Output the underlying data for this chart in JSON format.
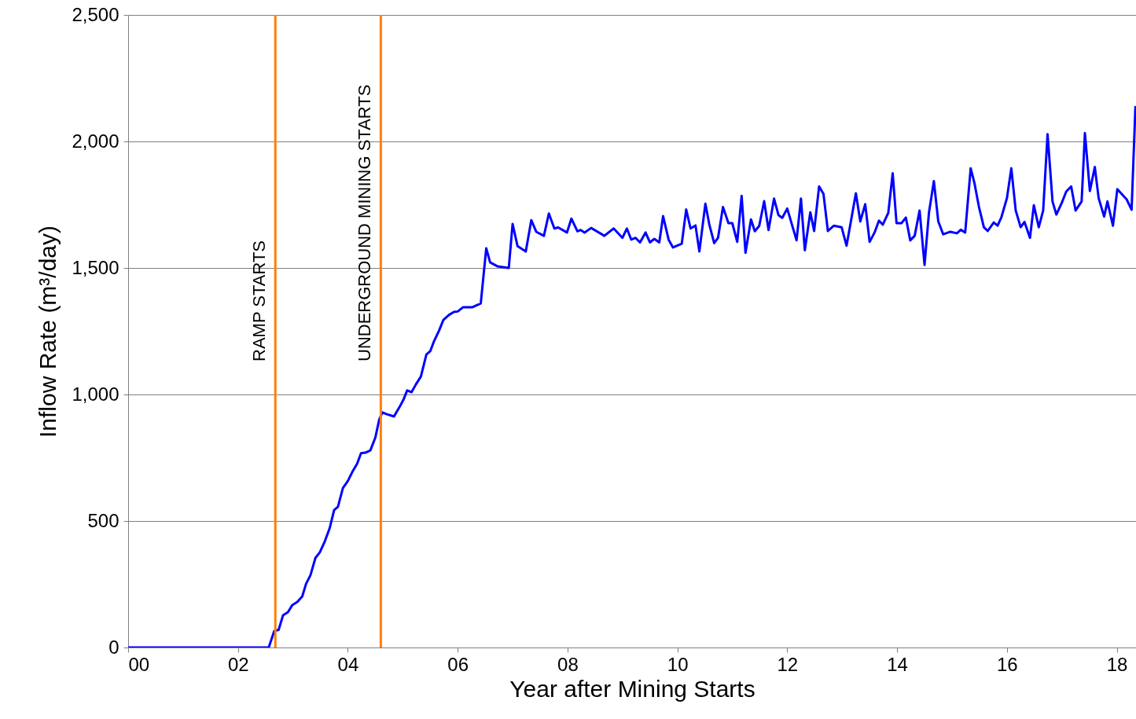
{
  "chart_data": {
    "type": "line",
    "xlabel": "Year after Mining Starts",
    "ylabel": "Inflow Rate (m³/day)",
    "xlim": [
      0,
      18.35
    ],
    "xticks": [
      {
        "value": 0,
        "label": "00"
      },
      {
        "value": 2,
        "label": "02"
      },
      {
        "value": 4,
        "label": "04"
      },
      {
        "value": 6,
        "label": "06"
      },
      {
        "value": 8,
        "label": "08"
      },
      {
        "value": 10,
        "label": "10"
      },
      {
        "value": 12,
        "label": "12"
      },
      {
        "value": 14,
        "label": "14"
      },
      {
        "value": 16,
        "label": "16"
      },
      {
        "value": 18,
        "label": "18"
      }
    ],
    "ylim": [
      0,
      2500
    ],
    "yticks": [
      {
        "value": 0,
        "label": "0"
      },
      {
        "value": 500,
        "label": "500"
      },
      {
        "value": 1000,
        "label": "1,000"
      },
      {
        "value": 1500,
        "label": "1,500"
      },
      {
        "value": 2000,
        "label": "2,000"
      },
      {
        "value": 2500,
        "label": "2,500"
      }
    ],
    "grid": "y",
    "marker": "none",
    "line_style": "solid",
    "ref_lines": [
      {
        "axis": "x",
        "value": 2.68,
        "label": "RAMP STARTS",
        "color": "#ff8000"
      },
      {
        "axis": "x",
        "value": 4.6,
        "label": "UNDERGROUND MINING STARTS",
        "color": "#ff8000"
      }
    ],
    "series": [
      {
        "color": "#0000ff",
        "x": [
          0,
          2.56,
          2.66,
          2.74,
          2.82,
          2.91,
          2.99,
          3.08,
          3.17,
          3.24,
          3.32,
          3.41,
          3.49,
          3.58,
          3.67,
          3.75,
          3.82,
          3.91,
          4.0,
          4.08,
          4.17,
          4.24,
          4.32,
          4.41,
          4.5,
          4.57,
          4.63,
          4.71,
          4.84,
          4.94,
          5.01,
          5.08,
          5.16,
          5.24,
          5.33,
          5.43,
          5.5,
          5.57,
          5.66,
          5.74,
          5.84,
          5.93,
          6.0,
          6.1,
          6.27,
          6.42,
          6.52,
          6.59,
          6.73,
          6.93,
          7.0,
          7.09,
          7.24,
          7.34,
          7.43,
          7.57,
          7.66,
          7.76,
          7.83,
          7.99,
          8.07,
          8.18,
          8.24,
          8.31,
          8.43,
          8.67,
          8.84,
          9.0,
          9.08,
          9.16,
          9.24,
          9.32,
          9.42,
          9.5,
          9.58,
          9.67,
          9.74,
          9.84,
          9.92,
          10.08,
          10.16,
          10.24,
          10.33,
          10.4,
          10.51,
          10.58,
          10.67,
          10.74,
          10.83,
          10.93,
          11.0,
          11.09,
          11.17,
          11.24,
          11.34,
          11.41,
          11.49,
          11.58,
          11.66,
          11.76,
          11.84,
          11.91,
          12.0,
          12.17,
          12.25,
          12.32,
          12.42,
          12.49,
          12.58,
          12.66,
          12.74,
          12.85,
          12.99,
          13.08,
          13.25,
          13.33,
          13.42,
          13.5,
          13.59,
          13.67,
          13.74,
          13.84,
          13.92,
          13.99,
          14.08,
          14.16,
          14.24,
          14.32,
          14.41,
          14.5,
          14.58,
          14.67,
          14.75,
          14.84,
          14.97,
          15.09,
          15.16,
          15.24,
          15.34,
          15.41,
          15.49,
          15.58,
          15.65,
          15.76,
          15.83,
          15.9,
          16.0,
          16.08,
          16.16,
          16.25,
          16.32,
          16.42,
          16.49,
          16.58,
          16.66,
          16.74,
          16.83,
          16.9,
          17.0,
          17.08,
          17.17,
          17.25,
          17.36,
          17.42,
          17.51,
          17.6,
          17.67,
          17.77,
          17.83,
          17.93,
          18.01,
          18.18,
          18.27,
          18.34
        ],
        "values": [
          0,
          0,
          65,
          70,
          127,
          140,
          168,
          180,
          202,
          252,
          286,
          354,
          376,
          419,
          472,
          543,
          556,
          630,
          658,
          693,
          727,
          768,
          770,
          779,
          829,
          900,
          929,
          922,
          913,
          950,
          978,
          1016,
          1009,
          1040,
          1071,
          1158,
          1171,
          1211,
          1252,
          1295,
          1314,
          1326,
          1328,
          1345,
          1345,
          1360,
          1578,
          1522,
          1506,
          1500,
          1674,
          1586,
          1565,
          1689,
          1643,
          1627,
          1715,
          1656,
          1660,
          1640,
          1695,
          1645,
          1650,
          1640,
          1658,
          1627,
          1656,
          1619,
          1656,
          1612,
          1619,
          1601,
          1640,
          1601,
          1615,
          1601,
          1705,
          1612,
          1581,
          1596,
          1731,
          1656,
          1668,
          1565,
          1754,
          1673,
          1598,
          1619,
          1741,
          1677,
          1677,
          1603,
          1785,
          1560,
          1692,
          1645,
          1666,
          1764,
          1650,
          1774,
          1709,
          1698,
          1735,
          1609,
          1774,
          1570,
          1720,
          1646,
          1822,
          1793,
          1646,
          1667,
          1661,
          1588,
          1795,
          1684,
          1752,
          1603,
          1640,
          1687,
          1671,
          1718,
          1874,
          1677,
          1677,
          1699,
          1609,
          1627,
          1727,
          1512,
          1718,
          1843,
          1684,
          1633,
          1643,
          1637,
          1651,
          1640,
          1894,
          1834,
          1742,
          1661,
          1646,
          1680,
          1667,
          1701,
          1776,
          1894,
          1727,
          1661,
          1682,
          1619,
          1748,
          1661,
          1727,
          2029,
          1763,
          1711,
          1758,
          1802,
          1822,
          1727,
          1763,
          2033,
          1804,
          1899,
          1776,
          1703,
          1763,
          1667,
          1811,
          1771,
          1730,
          2140
        ]
      }
    ]
  }
}
